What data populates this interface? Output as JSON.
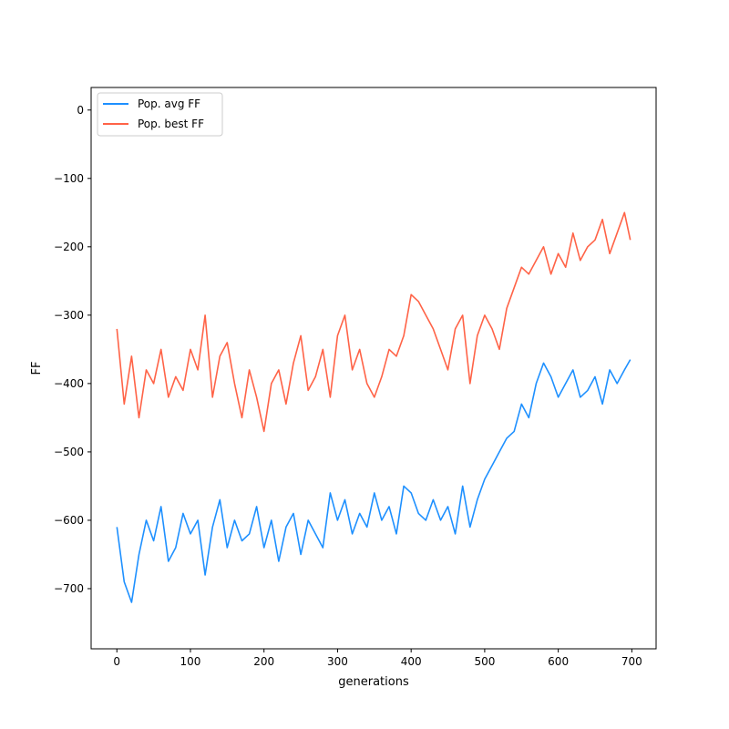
{
  "chart_data": {
    "type": "line",
    "title": "",
    "xlabel": "generations",
    "ylabel": "FF",
    "xlim": [
      -35,
      733
    ],
    "ylim": [
      -788,
      33
    ],
    "xticks": [
      0,
      100,
      200,
      300,
      400,
      500,
      600,
      700
    ],
    "yticks": [
      0,
      -100,
      -200,
      -300,
      -400,
      -500,
      -600,
      -700
    ],
    "grid": false,
    "legend": "top-left",
    "series": [
      {
        "name": "Pop. avg FF",
        "color": "#1e90ff",
        "x": [
          0,
          10,
          20,
          30,
          40,
          50,
          60,
          70,
          80,
          90,
          100,
          110,
          120,
          130,
          140,
          150,
          160,
          170,
          180,
          190,
          200,
          210,
          220,
          230,
          240,
          250,
          260,
          270,
          280,
          290,
          300,
          310,
          320,
          330,
          340,
          350,
          360,
          370,
          380,
          390,
          400,
          410,
          420,
          430,
          440,
          450,
          460,
          470,
          480,
          490,
          500,
          510,
          520,
          530,
          540,
          550,
          560,
          570,
          580,
          590,
          600,
          610,
          620,
          630,
          640,
          650,
          660,
          670,
          680,
          690,
          698
        ],
        "values": [
          -610,
          -690,
          -720,
          -650,
          -600,
          -630,
          -580,
          -660,
          -640,
          -590,
          -620,
          -600,
          -680,
          -610,
          -570,
          -640,
          -600,
          -630,
          -620,
          -580,
          -640,
          -600,
          -660,
          -610,
          -590,
          -650,
          -600,
          -620,
          -640,
          -560,
          -600,
          -570,
          -620,
          -590,
          -610,
          -560,
          -600,
          -580,
          -620,
          -550,
          -560,
          -590,
          -600,
          -570,
          -600,
          -580,
          -620,
          -550,
          -610,
          -570,
          -540,
          -520,
          -500,
          -480,
          -470,
          -430,
          -450,
          -400,
          -370,
          -390,
          -420,
          -400,
          -380,
          -420,
          -410,
          -390,
          -430,
          -380,
          -400,
          -380,
          -365
        ]
      },
      {
        "name": "Pop. best FF",
        "color": "#ff6347",
        "x": [
          0,
          10,
          20,
          30,
          40,
          50,
          60,
          70,
          80,
          90,
          100,
          110,
          120,
          130,
          140,
          150,
          160,
          170,
          180,
          190,
          200,
          210,
          220,
          230,
          240,
          250,
          260,
          270,
          280,
          290,
          300,
          310,
          320,
          330,
          340,
          350,
          360,
          370,
          380,
          390,
          400,
          410,
          420,
          430,
          440,
          450,
          460,
          470,
          480,
          490,
          500,
          510,
          520,
          530,
          540,
          550,
          560,
          570,
          580,
          590,
          600,
          610,
          620,
          630,
          640,
          650,
          660,
          670,
          680,
          690,
          698
        ],
        "values": [
          -320,
          -430,
          -360,
          -450,
          -380,
          -400,
          -350,
          -420,
          -390,
          -410,
          -350,
          -380,
          -300,
          -420,
          -360,
          -340,
          -400,
          -450,
          -380,
          -420,
          -470,
          -400,
          -380,
          -430,
          -370,
          -330,
          -410,
          -390,
          -350,
          -420,
          -330,
          -300,
          -380,
          -350,
          -400,
          -420,
          -390,
          -350,
          -360,
          -330,
          -270,
          -280,
          -300,
          -320,
          -350,
          -380,
          -320,
          -300,
          -400,
          -330,
          -300,
          -320,
          -350,
          -290,
          -260,
          -230,
          -240,
          -220,
          -200,
          -240,
          -210,
          -230,
          -180,
          -220,
          -200,
          -190,
          -160,
          -210,
          -180,
          -150,
          -190
        ]
      }
    ]
  }
}
